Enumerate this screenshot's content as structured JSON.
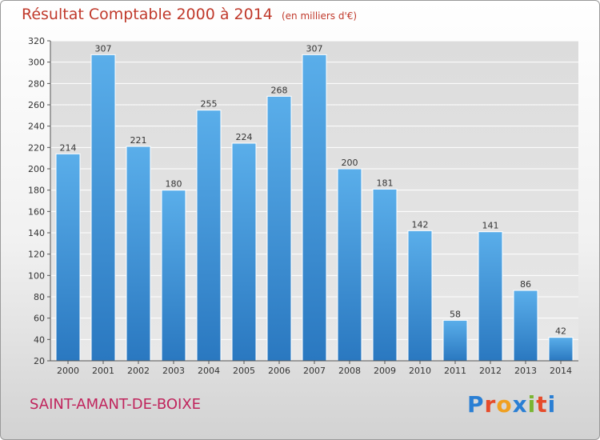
{
  "chart_data": {
    "type": "bar",
    "title": "Résultat Comptable 2000 à 2014",
    "subtitle": "(en milliers d'€)",
    "categories": [
      "2000",
      "2001",
      "2002",
      "2003",
      "2004",
      "2005",
      "2006",
      "2007",
      "2008",
      "2009",
      "2010",
      "2011",
      "2012",
      "2013",
      "2014"
    ],
    "values": [
      214,
      307,
      221,
      180,
      255,
      224,
      268,
      307,
      200,
      181,
      142,
      58,
      141,
      86,
      42
    ],
    "ylim": [
      20,
      320
    ],
    "yticks": [
      20,
      40,
      60,
      80,
      100,
      120,
      140,
      160,
      180,
      200,
      220,
      240,
      260,
      280,
      300,
      320
    ],
    "grid": true,
    "bar_color": "#3a92d8"
  },
  "footer": {
    "commune": "SAINT-AMANT-DE-BOIXE",
    "logo_letters": [
      "P",
      "r",
      "o",
      "x",
      "i",
      "t",
      "i"
    ]
  }
}
